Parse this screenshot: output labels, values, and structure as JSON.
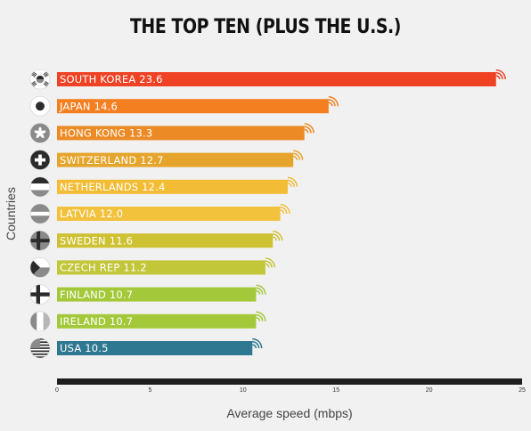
{
  "chart_data": {
    "type": "bar",
    "orientation": "horizontal",
    "title": "THE TOP TEN (PLUS THE U.S.)",
    "xlabel": "Average speed (mbps)",
    "ylabel": "Countries",
    "xlim": [
      0,
      25
    ],
    "xticks": [
      "0",
      "5",
      "10",
      "15",
      "20",
      "25"
    ],
    "bars": [
      {
        "label": "SOUTH KOREA",
        "value": 23.6,
        "value_text": "23.6",
        "color": "#ef4225",
        "flag": "south-korea"
      },
      {
        "label": "JAPAN",
        "value": 14.6,
        "value_text": "14.6",
        "color": "#f37f21",
        "flag": "japan"
      },
      {
        "label": "HONG KONG",
        "value": 13.3,
        "value_text": "13.3",
        "color": "#ec8b26",
        "flag": "hong-kong"
      },
      {
        "label": "SWITZERLAND",
        "value": 12.7,
        "value_text": "12.7",
        "color": "#e5a42b",
        "flag": "switzerland"
      },
      {
        "label": "NETHERLANDS",
        "value": 12.4,
        "value_text": "12.4",
        "color": "#f3bc35",
        "flag": "netherlands"
      },
      {
        "label": "LATVIA",
        "value": 12.0,
        "value_text": "12.0",
        "color": "#f2c23c",
        "flag": "latvia"
      },
      {
        "label": "SWEDEN",
        "value": 11.6,
        "value_text": "11.6",
        "color": "#cec132",
        "flag": "sweden"
      },
      {
        "label": "CZECH REP",
        "value": 11.2,
        "value_text": "11.2",
        "color": "#c2c639",
        "flag": "czech-republic"
      },
      {
        "label": "FINLAND",
        "value": 10.7,
        "value_text": "10.7",
        "color": "#a3c93a",
        "flag": "finland"
      },
      {
        "label": "IRELAND",
        "value": 10.7,
        "value_text": "10.7",
        "color": "#a3c93a",
        "flag": "ireland"
      },
      {
        "label": "USA",
        "value": 10.5,
        "value_text": "10.5",
        "color": "#2f7892",
        "flag": "usa"
      }
    ],
    "axis_color": "#1e1e1e",
    "grid": false,
    "legend": "none"
  }
}
